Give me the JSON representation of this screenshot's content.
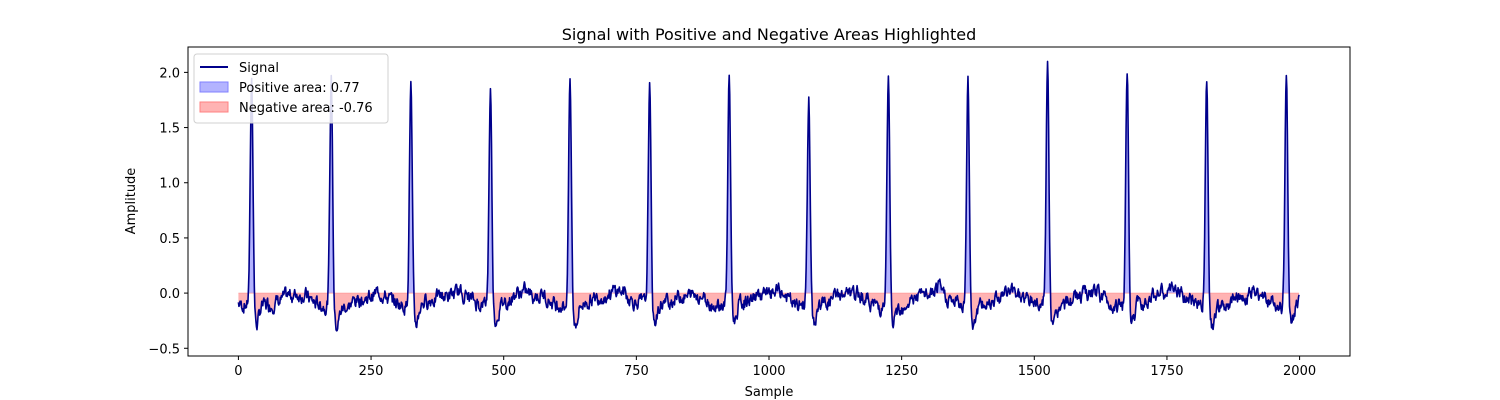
{
  "chart_data": {
    "type": "line",
    "title": "Signal with Positive and Negative Areas Highlighted",
    "xlabel": "Sample",
    "ylabel": "Amplitude",
    "xlim": [
      -95,
      2095
    ],
    "ylim": [
      -0.57,
      2.23
    ],
    "xticks": [
      0,
      250,
      500,
      750,
      1000,
      1250,
      1500,
      1750,
      2000
    ],
    "yticks": [
      -0.5,
      0.0,
      0.5,
      1.0,
      1.5,
      2.0
    ],
    "ytick_labels": [
      "−0.5",
      "0.0",
      "0.5",
      "1.0",
      "1.5",
      "2.0"
    ],
    "grid": false,
    "legend_position": "top-left",
    "series": [
      {
        "name": "Signal",
        "color": "#00008b"
      }
    ],
    "legend": [
      {
        "label": "Signal",
        "kind": "line",
        "color": "#00008b"
      },
      {
        "label": "Positive area: 0.77",
        "kind": "patch",
        "color": "#b3b3ff",
        "edge": "#8080ff"
      },
      {
        "label": "Negative area: -0.76",
        "kind": "patch",
        "color": "#ffb3b3",
        "edge": "#ff8080"
      }
    ],
    "positive_fill_color": "#b3b3ff",
    "negative_fill_color": "#ffb3b3",
    "signal": {
      "length": 2000,
      "baseline_y": -0.1,
      "noise_amplitude": 0.12,
      "peaks": [
        {
          "x": 25,
          "y": 1.98
        },
        {
          "x": 175,
          "y": 1.99
        },
        {
          "x": 325,
          "y": 1.94
        },
        {
          "x": 475,
          "y": 1.86
        },
        {
          "x": 625,
          "y": 1.96
        },
        {
          "x": 775,
          "y": 1.89
        },
        {
          "x": 925,
          "y": 1.97
        },
        {
          "x": 1075,
          "y": 1.8
        },
        {
          "x": 1225,
          "y": 1.97
        },
        {
          "x": 1375,
          "y": 1.95
        },
        {
          "x": 1525,
          "y": 2.09
        },
        {
          "x": 1675,
          "y": 2.05
        },
        {
          "x": 1825,
          "y": 1.97
        },
        {
          "x": 1975,
          "y": 2.0
        }
      ]
    }
  }
}
